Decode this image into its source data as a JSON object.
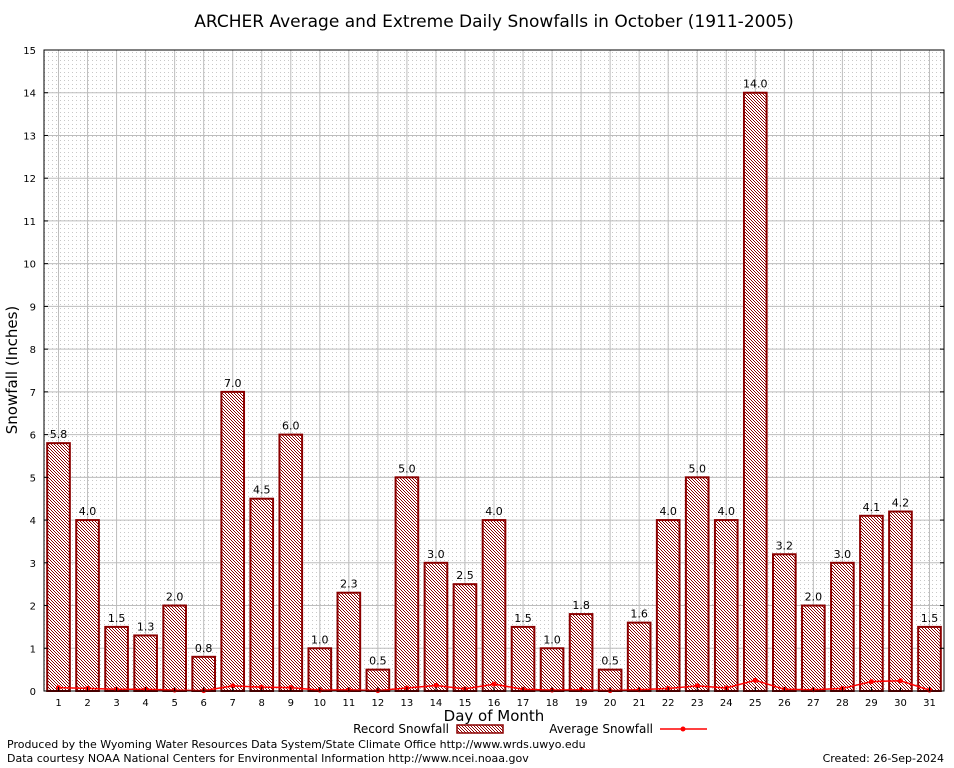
{
  "chart_data": {
    "type": "bar",
    "title": "ARCHER Average and Extreme Daily Snowfalls in October (1911-2005)",
    "xlabel": "Day of Month",
    "ylabel": "Snowfall (Inches)",
    "ylim": [
      0,
      15
    ],
    "yticks": [
      "0",
      "1",
      "2",
      "3",
      "4",
      "5",
      "6",
      "7",
      "8",
      "9",
      "10",
      "11",
      "12",
      "13",
      "14",
      "15"
    ],
    "grid": true,
    "categories": [
      "1",
      "2",
      "3",
      "4",
      "5",
      "6",
      "7",
      "8",
      "9",
      "10",
      "11",
      "12",
      "13",
      "14",
      "15",
      "16",
      "17",
      "18",
      "19",
      "20",
      "21",
      "22",
      "23",
      "24",
      "25",
      "26",
      "27",
      "28",
      "29",
      "30",
      "31"
    ],
    "series": [
      {
        "name": "Record Snowfall",
        "values": [
          5.8,
          4.0,
          1.5,
          1.3,
          2.0,
          0.8,
          7.0,
          4.5,
          6.0,
          1.0,
          2.3,
          0.5,
          5.0,
          3.0,
          2.5,
          4.0,
          1.5,
          1.0,
          1.8,
          0.5,
          1.6,
          4.0,
          5.0,
          4.0,
          14.0,
          3.2,
          2.0,
          3.0,
          4.1,
          4.2,
          1.5
        ],
        "labels": [
          "5.8",
          "4.0",
          "1.5",
          "1.3",
          "2.0",
          "0.8",
          "7.0",
          "4.5",
          "6.0",
          "1.0",
          "2.3",
          "0.5",
          "5.0",
          "3.0",
          "2.5",
          "4.0",
          "1.5",
          "1.0",
          "1.8",
          "0.5",
          "1.6",
          "4.0",
          "5.0",
          "4.0",
          "14.0",
          "3.2",
          "2.0",
          "3.0",
          "4.1",
          "4.2",
          "1.5"
        ],
        "color": "#8b0000"
      },
      {
        "name": "Average Snowfall",
        "values": [
          0.08,
          0.06,
          0.04,
          0.04,
          0.02,
          0.01,
          0.12,
          0.09,
          0.08,
          0.02,
          0.03,
          0.01,
          0.07,
          0.13,
          0.05,
          0.16,
          0.04,
          0.02,
          0.03,
          0.01,
          0.03,
          0.06,
          0.12,
          0.07,
          0.25,
          0.04,
          0.03,
          0.06,
          0.22,
          0.24,
          0.02
        ],
        "color": "#ff0000"
      }
    ],
    "legend_position": "bottom"
  },
  "footer": {
    "produced": "Produced by the Wyoming Water Resources Data System/State Climate Office http://www.wrds.uwyo.edu",
    "courtesy": "Data courtesy NOAA National Centers for Environmental Information http://www.ncei.noaa.gov",
    "created": "Created: 26-Sep-2024"
  }
}
